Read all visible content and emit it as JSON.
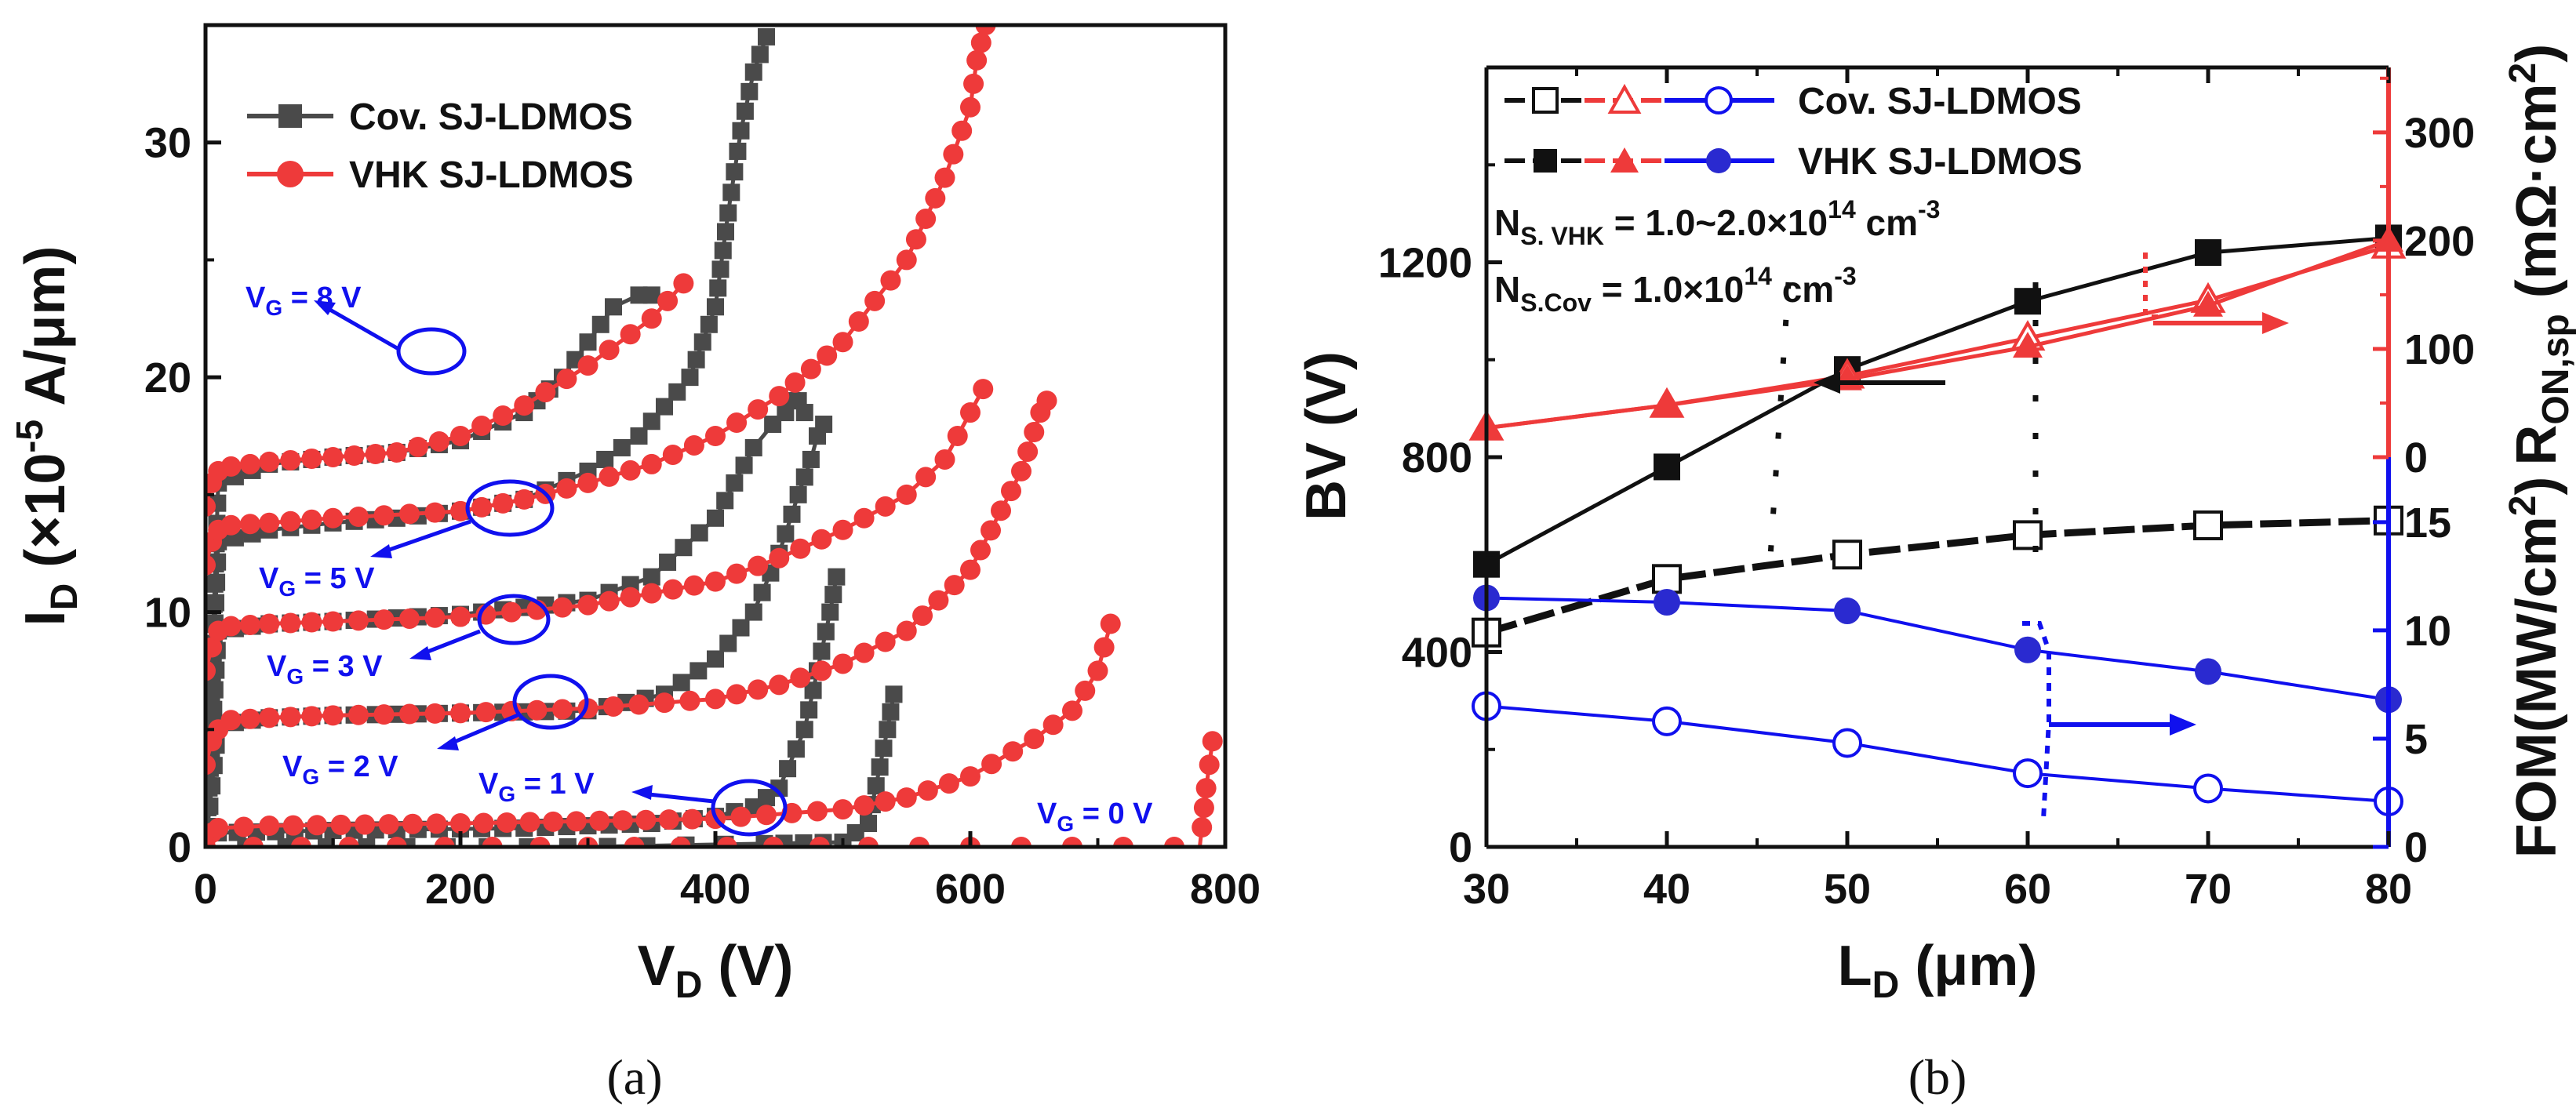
{
  "captions": {
    "a": "(a)",
    "b": "(b)"
  },
  "colors": {
    "gray": "#4a4a4a",
    "red": "#ee3a3a",
    "blue": "#1010ee",
    "black": "#111111"
  },
  "chart_data": [
    {
      "panel": "a",
      "type": "line",
      "ylabel_main": "I",
      "ylabel_sub": "D",
      "ylabel_rest": " (×10",
      "ylabel_exp": "-5",
      "ylabel_tail": " A/μm)",
      "xlabel_main": "V",
      "xlabel_sub": "D",
      "xlabel_rest": " (V)",
      "xlim": [
        0,
        800
      ],
      "ylim": [
        0,
        35
      ],
      "xticks": [
        "0",
        "200",
        "400",
        "600",
        "800"
      ],
      "yticks": [
        "0",
        "10",
        "20",
        "30"
      ],
      "legend": [
        "Cov. SJ-LDMOS",
        "VHK SJ-LDMOS"
      ],
      "annotations": [
        {
          "main": "V",
          "sub": "G",
          "rest": " = 8 V"
        },
        {
          "main": "V",
          "sub": "G",
          "rest": " = 5 V"
        },
        {
          "main": "V",
          "sub": "G",
          "rest": " = 3 V"
        },
        {
          "main": "V",
          "sub": "G",
          "rest": " = 2 V"
        },
        {
          "main": "V",
          "sub": "G",
          "rest": " = 1 V"
        },
        {
          "main": "V",
          "sub": "G",
          "rest": " = 0 V"
        }
      ],
      "series": [
        {
          "name": "Cov. SJ-LDMOS",
          "vg": "8",
          "x": [
            0,
            10,
            50,
            100,
            150,
            200,
            250,
            280,
            300,
            320,
            340,
            350
          ],
          "y": [
            0,
            15.5,
            16.3,
            16.6,
            16.8,
            17.3,
            18.5,
            20,
            21.5,
            23,
            23.5,
            23.5
          ]
        },
        {
          "name": "Cov. SJ-LDMOS",
          "vg": "5",
          "x": [
            0,
            10,
            50,
            100,
            150,
            200,
            250,
            300,
            340,
            380,
            400,
            410,
            420,
            430,
            440
          ],
          "y": [
            0,
            13,
            13.5,
            13.8,
            14.0,
            14.3,
            14.8,
            16,
            17.5,
            20,
            23,
            27,
            30.5,
            33,
            34.5
          ]
        },
        {
          "name": "Cov. SJ-LDMOS",
          "vg": "3",
          "x": [
            0,
            10,
            50,
            100,
            200,
            300,
            350,
            400,
            430,
            445,
            455,
            460,
            465,
            470
          ],
          "y": [
            0,
            9.2,
            9.5,
            9.6,
            9.9,
            10.5,
            11.5,
            14,
            17,
            18,
            18.5,
            19,
            19,
            18.5
          ]
        },
        {
          "name": "Cov. SJ-LDMOS",
          "vg": "2",
          "x": [
            0,
            10,
            50,
            100,
            200,
            300,
            360,
            400,
            430,
            450,
            465,
            475,
            480,
            485
          ],
          "y": [
            0,
            5.2,
            5.5,
            5.6,
            5.7,
            5.8,
            6.5,
            8,
            10,
            12.5,
            15,
            16.5,
            17.5,
            18
          ]
        },
        {
          "name": "Cov. SJ-LDMOS",
          "vg": "1",
          "x": [
            0,
            10,
            100,
            250,
            350,
            400,
            430,
            450,
            470,
            480,
            490,
            495
          ],
          "y": [
            0,
            0.6,
            0.7,
            0.8,
            1.0,
            1.3,
            1.7,
            2.5,
            5,
            7.5,
            10,
            11.5
          ]
        },
        {
          "name": "Cov. SJ-LDMOS",
          "vg": "0",
          "x": [
            0,
            300,
            500,
            520,
            535,
            540
          ],
          "y": [
            0,
            0,
            0.2,
            1.0,
            5,
            6.5
          ]
        },
        {
          "name": "VHK SJ-LDMOS",
          "vg": "8",
          "x": [
            0,
            5,
            10,
            20,
            50,
            100,
            150,
            200,
            250,
            300,
            350,
            375
          ],
          "y": [
            14.5,
            15.5,
            16.0,
            16.2,
            16.4,
            16.6,
            16.8,
            17.5,
            18.8,
            20.5,
            22.5,
            24
          ]
        },
        {
          "name": "VHK SJ-LDMOS",
          "vg": "5",
          "x": [
            0,
            5,
            10,
            20,
            50,
            100,
            200,
            250,
            300,
            350,
            400,
            450,
            500,
            550,
            580,
            600,
            605,
            612
          ],
          "y": [
            12,
            13,
            13.5,
            13.7,
            13.8,
            14.0,
            14.3,
            14.8,
            15.5,
            16.3,
            17.5,
            19.2,
            21.5,
            25,
            28.5,
            31.5,
            33.5,
            35
          ]
        },
        {
          "name": "VHK SJ-LDMOS",
          "vg": "3",
          "x": [
            0,
            5,
            10,
            20,
            50,
            100,
            200,
            300,
            400,
            450,
            500,
            550,
            580,
            600,
            610
          ],
          "y": [
            7.5,
            8.5,
            9.2,
            9.4,
            9.5,
            9.6,
            9.8,
            10.3,
            11.3,
            12.3,
            13.5,
            15,
            16.5,
            18.5,
            19.5
          ]
        },
        {
          "name": "VHK SJ-LDMOS",
          "vg": "2",
          "x": [
            0,
            5,
            10,
            20,
            50,
            100,
            200,
            300,
            400,
            450,
            500,
            550,
            600,
            640,
            655,
            660
          ],
          "y": [
            3.5,
            4.5,
            5.0,
            5.4,
            5.5,
            5.6,
            5.7,
            5.9,
            6.3,
            6.9,
            7.8,
            9.2,
            11.8,
            16,
            18.5,
            19
          ]
        },
        {
          "name": "VHK SJ-LDMOS",
          "vg": "1",
          "x": [
            0,
            5,
            10,
            50,
            200,
            400,
            500,
            550,
            600,
            650,
            680,
            700,
            705,
            710
          ],
          "y": [
            0.3,
            0.6,
            0.8,
            0.9,
            1.0,
            1.2,
            1.6,
            2.1,
            3.0,
            4.6,
            5.8,
            7.5,
            8.5,
            9.5
          ]
        },
        {
          "name": "VHK SJ-LDMOS",
          "vg": "0",
          "x": [
            0,
            300,
            500,
            600,
            700,
            780,
            785,
            790
          ],
          "y": [
            0,
            0,
            0,
            0,
            0,
            0,
            2.5,
            4.5
          ]
        }
      ]
    },
    {
      "panel": "b",
      "type": "line",
      "xlabel_main": "L",
      "xlabel_sub": "D",
      "xlabel_rest": " (μm)",
      "ylabel_left_main": "BV (V)",
      "ylabel_right_top": "R",
      "ylabel_right_top_sub": "ON,sp",
      "ylabel_right_top_rest": " (mΩ·cm",
      "ylabel_right_top_exp": "2",
      "ylabel_right_top_close": ")",
      "ylabel_right_bot": "FOM(MW/cm",
      "ylabel_right_bot_exp": "2",
      "ylabel_right_bot_close": ")",
      "xlim": [
        30,
        80
      ],
      "ylim_left": [
        0,
        1600
      ],
      "ylim_right_top": [
        0,
        360
      ],
      "ylim_right_bottom": [
        0,
        18
      ],
      "xticks": [
        "30",
        "40",
        "50",
        "60",
        "70",
        "80"
      ],
      "yticks_left": [
        "0",
        "400",
        "800",
        "1200"
      ],
      "yticks_right_top": [
        "0",
        "100",
        "200",
        "300"
      ],
      "yticks_right_bottom": [
        "0",
        "5",
        "10",
        "15"
      ],
      "legend": [
        "Cov. SJ-LDMOS",
        "VHK SJ-LDMOS"
      ],
      "notes": [
        {
          "main": "N",
          "sub": "S. VHK",
          "rest": " = 1.0~2.0×10",
          "exp": "14",
          "tail": " cm",
          "exp2": "-3"
        },
        {
          "main": "N",
          "sub": "S.Cov",
          "rest": " = 1.0×10",
          "exp": "14",
          "tail": " cm",
          "exp2": "-3"
        }
      ],
      "x": [
        30,
        40,
        50,
        60,
        70,
        80
      ],
      "series": [
        {
          "name": "Cov. SJ-LDMOS",
          "quantity": "BV",
          "axis": "left",
          "values": [
            440,
            550,
            600,
            640,
            660,
            670
          ]
        },
        {
          "name": "VHK SJ-LDMOS",
          "quantity": "BV",
          "axis": "left",
          "values": [
            580,
            780,
            980,
            1120,
            1220,
            1250
          ]
        },
        {
          "name": "Cov. SJ-LDMOS",
          "quantity": "R_ON,sp",
          "axis": "right_top",
          "values": [
            27,
            48,
            75,
            110,
            145,
            195
          ]
        },
        {
          "name": "VHK SJ-LDMOS",
          "quantity": "R_ON,sp",
          "axis": "right_top",
          "values": [
            27,
            48,
            72,
            102,
            140,
            200
          ]
        },
        {
          "name": "Cov. SJ-LDMOS",
          "quantity": "FOM",
          "axis": "right_bottom",
          "values": [
            6.5,
            5.8,
            4.8,
            3.4,
            2.7,
            2.1
          ]
        },
        {
          "name": "VHK SJ-LDMOS",
          "quantity": "FOM",
          "axis": "right_bottom",
          "values": [
            11.5,
            11.3,
            10.9,
            9.1,
            8.1,
            6.8
          ]
        }
      ]
    }
  ]
}
